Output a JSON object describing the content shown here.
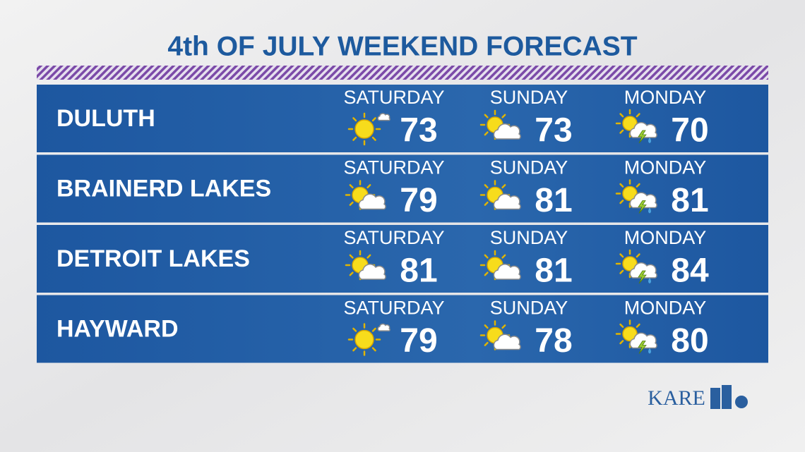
{
  "title": "4th OF JULY WEEKEND FORECAST",
  "rows": [
    {
      "city": "DULUTH",
      "days": [
        {
          "day": "SATURDAY",
          "temp": 73,
          "icon": "sunny"
        },
        {
          "day": "SUNDAY",
          "temp": 73,
          "icon": "partly-cloudy"
        },
        {
          "day": "MONDAY",
          "temp": 70,
          "icon": "storm"
        }
      ]
    },
    {
      "city": "BRAINERD LAKES",
      "days": [
        {
          "day": "SATURDAY",
          "temp": 79,
          "icon": "partly-cloudy"
        },
        {
          "day": "SUNDAY",
          "temp": 81,
          "icon": "partly-cloudy"
        },
        {
          "day": "MONDAY",
          "temp": 81,
          "icon": "storm"
        }
      ]
    },
    {
      "city": "DETROIT LAKES",
      "days": [
        {
          "day": "SATURDAY",
          "temp": 81,
          "icon": "partly-cloudy"
        },
        {
          "day": "SUNDAY",
          "temp": 81,
          "icon": "partly-cloudy"
        },
        {
          "day": "MONDAY",
          "temp": 84,
          "icon": "storm"
        }
      ]
    },
    {
      "city": "HAYWARD",
      "days": [
        {
          "day": "SATURDAY",
          "temp": 79,
          "icon": "sunny"
        },
        {
          "day": "SUNDAY",
          "temp": 78,
          "icon": "partly-cloudy"
        },
        {
          "day": "MONDAY",
          "temp": 80,
          "icon": "storm"
        }
      ]
    }
  ],
  "logo": "KARE"
}
